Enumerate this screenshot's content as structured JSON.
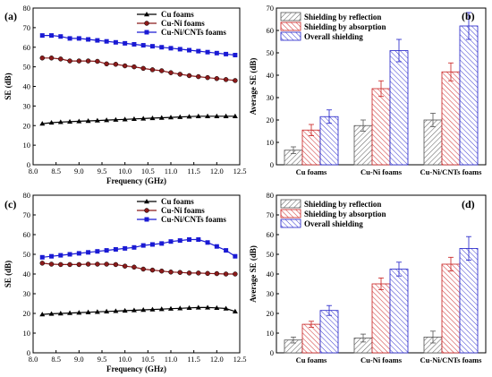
{
  "chart_data": [
    {
      "panel": "(a)",
      "type": "line",
      "xlabel": "Frequency (GHz)",
      "ylabel": "SE (dB)",
      "xlim": [
        8.0,
        12.5
      ],
      "ylim": [
        0,
        80
      ],
      "xticks": [
        "8.0",
        "8.5",
        "9.0",
        "9.5",
        "10.0",
        "10.5",
        "11.0",
        "11.5",
        "12.0",
        "12.5"
      ],
      "yticks": [
        "0",
        "10",
        "20",
        "30",
        "40",
        "50",
        "60",
        "70",
        "80"
      ],
      "legend_position": "top-right",
      "series": [
        {
          "name": "Cu foams",
          "color": "#000000",
          "marker": "triangle",
          "x": [
            8.2,
            8.4,
            8.6,
            8.8,
            9.0,
            9.2,
            9.4,
            9.6,
            9.8,
            10.0,
            10.2,
            10.4,
            10.6,
            10.8,
            11.0,
            11.2,
            11.4,
            11.6,
            11.8,
            12.0,
            12.2,
            12.4
          ],
          "y": [
            21,
            21.5,
            21.8,
            22,
            22.2,
            22.4,
            22.6,
            22.8,
            23,
            23.2,
            23.4,
            23.6,
            23.8,
            24,
            24.2,
            24.4,
            24.6,
            24.8,
            24.8,
            24.8,
            24.8,
            24.8
          ]
        },
        {
          "name": "Cu-Ni foams",
          "color": "#8b1a1a",
          "marker": "circle",
          "x": [
            8.2,
            8.4,
            8.6,
            8.8,
            9.0,
            9.2,
            9.4,
            9.6,
            9.8,
            10.0,
            10.2,
            10.4,
            10.6,
            10.8,
            11.0,
            11.2,
            11.4,
            11.6,
            11.8,
            12.0,
            12.2,
            12.4
          ],
          "y": [
            54.5,
            54.5,
            54,
            53,
            53,
            53,
            52.8,
            51.5,
            51.3,
            50.5,
            50,
            49.2,
            48.5,
            48,
            47,
            46.2,
            45.5,
            45,
            44.5,
            44,
            43.5,
            43
          ]
        },
        {
          "name": "Cu-Ni/CNTs foams",
          "color": "#1a1ad4",
          "marker": "square",
          "x": [
            8.2,
            8.4,
            8.6,
            8.8,
            9.0,
            9.2,
            9.4,
            9.6,
            9.8,
            10.0,
            10.2,
            10.4,
            10.6,
            10.8,
            11.0,
            11.2,
            11.4,
            11.6,
            11.8,
            12.0,
            12.2,
            12.4
          ],
          "y": [
            66,
            66,
            65.5,
            64.5,
            64.5,
            64,
            63.5,
            63,
            62.5,
            62,
            61.5,
            61,
            60.5,
            60,
            59.5,
            59,
            58.5,
            58,
            57.5,
            57,
            56.5,
            56
          ]
        }
      ]
    },
    {
      "panel": "(b)",
      "type": "bar",
      "ylabel": "Average SE (dB)",
      "ylim": [
        0,
        70
      ],
      "yticks": [
        "0",
        "10",
        "20",
        "30",
        "40",
        "50",
        "60",
        "70"
      ],
      "categories": [
        "Cu foams",
        "Cu-Ni foams",
        "Cu-Ni/CNTs foams"
      ],
      "legend_position": "top-left",
      "series": [
        {
          "name": "Shielding by reflection",
          "color": "#555555",
          "hatch": "gray",
          "values": [
            6.5,
            17.5,
            20
          ],
          "errors": [
            1.5,
            2.5,
            3
          ]
        },
        {
          "name": "Shielding by absorption",
          "color": "#c81e1e",
          "hatch": "red",
          "values": [
            15.5,
            34,
            41.5
          ],
          "errors": [
            2.5,
            3.5,
            4
          ]
        },
        {
          "name": "Overall shielding",
          "color": "#1e1ec8",
          "hatch": "blue",
          "values": [
            21.5,
            51,
            62
          ],
          "errors": [
            3,
            5,
            6
          ]
        }
      ]
    },
    {
      "panel": "(c)",
      "type": "line",
      "xlabel": "Frequency (GHz)",
      "ylabel": "SE (dB)",
      "xlim": [
        8.0,
        12.5
      ],
      "ylim": [
        0,
        80
      ],
      "xticks": [
        "8.0",
        "8.5",
        "9.0",
        "9.5",
        "10.0",
        "10.5",
        "11.0",
        "11.5",
        "12.0",
        "12.5"
      ],
      "yticks": [
        "0",
        "10",
        "20",
        "30",
        "40",
        "50",
        "60",
        "70",
        "80"
      ],
      "legend_position": "top-right",
      "series": [
        {
          "name": "Cu foams",
          "color": "#000000",
          "marker": "triangle",
          "x": [
            8.2,
            8.4,
            8.6,
            8.8,
            9.0,
            9.2,
            9.4,
            9.6,
            9.8,
            10.0,
            10.2,
            10.4,
            10.6,
            10.8,
            11.0,
            11.2,
            11.4,
            11.6,
            11.8,
            12.0,
            12.2,
            12.4
          ],
          "y": [
            19.5,
            19.8,
            20,
            20.2,
            20.4,
            20.6,
            20.8,
            21,
            21.2,
            21.4,
            21.6,
            21.8,
            22,
            22.2,
            22.4,
            22.6,
            22.8,
            23,
            23,
            22.8,
            22.5,
            21
          ]
        },
        {
          "name": "Cu-Ni foams",
          "color": "#8b1a1a",
          "marker": "circle",
          "x": [
            8.2,
            8.4,
            8.6,
            8.8,
            9.0,
            9.2,
            9.4,
            9.6,
            9.8,
            10.0,
            10.2,
            10.4,
            10.6,
            10.8,
            11.0,
            11.2,
            11.4,
            11.6,
            11.8,
            12.0,
            12.2,
            12.4
          ],
          "y": [
            45.5,
            45,
            44.8,
            44.8,
            44.8,
            45,
            45,
            45,
            44.8,
            44,
            43.5,
            42.5,
            42,
            41.5,
            41,
            40.8,
            40.5,
            40.5,
            40.3,
            40.2,
            40,
            40
          ]
        },
        {
          "name": "Cu-Ni/CNTs foams",
          "color": "#1a1ad4",
          "marker": "square",
          "x": [
            8.2,
            8.4,
            8.6,
            8.8,
            9.0,
            9.2,
            9.4,
            9.6,
            9.8,
            10.0,
            10.2,
            10.4,
            10.6,
            10.8,
            11.0,
            11.2,
            11.4,
            11.6,
            11.8,
            12.0,
            12.2,
            12.4
          ],
          "y": [
            48.5,
            49,
            49.5,
            50,
            50.5,
            51,
            51.5,
            52,
            52.5,
            53,
            53.5,
            54.5,
            55,
            55.5,
            56.5,
            57,
            57.5,
            57.5,
            56,
            54,
            52,
            49
          ]
        }
      ]
    },
    {
      "panel": "(d)",
      "type": "bar",
      "ylabel": "Average SE (dB)",
      "ylim": [
        0,
        80
      ],
      "yticks": [
        "0",
        "10",
        "20",
        "30",
        "40",
        "50",
        "60",
        "70",
        "80"
      ],
      "categories": [
        "Cu foams",
        "Cu-Ni foams",
        "Cu-Ni/CNTs foams"
      ],
      "legend_position": "top-left",
      "series": [
        {
          "name": "Shielding by reflection",
          "color": "#555555",
          "hatch": "gray",
          "values": [
            6.5,
            7.5,
            8
          ],
          "errors": [
            1.5,
            2,
            3
          ]
        },
        {
          "name": "Shielding by absorption",
          "color": "#c81e1e",
          "hatch": "red",
          "values": [
            14.5,
            35,
            45
          ],
          "errors": [
            1.5,
            3,
            3.5
          ]
        },
        {
          "name": "Overall shielding",
          "color": "#1e1ec8",
          "hatch": "blue",
          "values": [
            21.5,
            42.5,
            53
          ],
          "errors": [
            2.5,
            3.5,
            6
          ]
        }
      ]
    }
  ]
}
